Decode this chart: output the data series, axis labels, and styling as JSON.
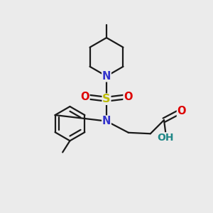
{
  "background_color": "#ebebeb",
  "bond_color": "#1a1a1a",
  "N_color": "#3333cc",
  "S_color": "#bbbb00",
  "O_color": "#dd0000",
  "OH_color": "#228888",
  "figsize": [
    3.0,
    3.0
  ],
  "dpi": 100,
  "xlim": [
    0,
    10
  ],
  "ylim": [
    0,
    10
  ]
}
